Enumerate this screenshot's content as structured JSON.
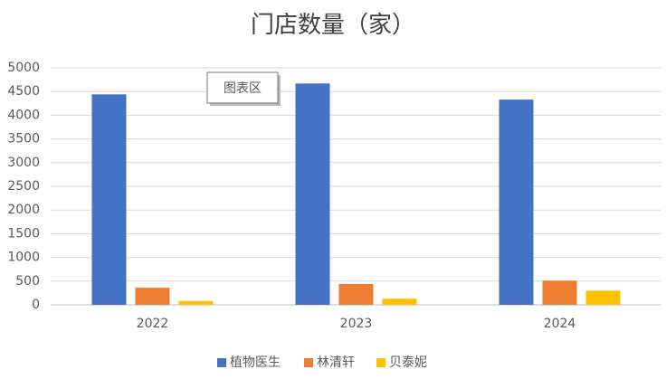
{
  "chart_data": {
    "type": "bar",
    "title": "门店数量（家）",
    "tooltip": "图表区",
    "categories": [
      "2022",
      "2023",
      "2024"
    ],
    "series": [
      {
        "name": "植物医生",
        "color": "#4472c4",
        "values": [
          4440,
          4670,
          4330
        ]
      },
      {
        "name": "林清轩",
        "color": "#ed7d31",
        "values": [
          360,
          440,
          510
        ]
      },
      {
        "name": "贝泰妮",
        "color": "#ffc000",
        "values": [
          80,
          130,
          300
        ]
      }
    ],
    "ylim": [
      0,
      5000
    ],
    "yticks": [
      0,
      500,
      1000,
      1500,
      2000,
      2500,
      3000,
      3500,
      4000,
      4500,
      5000
    ],
    "grid": true,
    "legend": "bottom"
  }
}
